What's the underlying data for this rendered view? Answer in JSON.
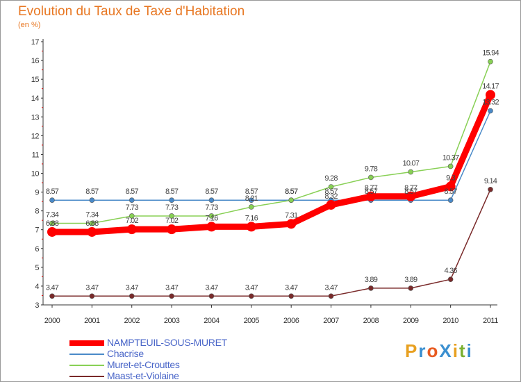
{
  "title": "Evolution du Taux de Taxe d'Habitation",
  "subtitle": "(en %)",
  "logo": {
    "text": "ProXiti",
    "colors": [
      "#e8a020",
      "#3a8fd0",
      "#e85a20",
      "#3a8fd0",
      "#e8a020",
      "#7ab030",
      "#3a8fd0"
    ]
  },
  "chart_data": {
    "type": "line",
    "x": [
      "2000",
      "2001",
      "2002",
      "2003",
      "2004",
      "2005",
      "2006",
      "2007",
      "2008",
      "2009",
      "2010",
      "2011"
    ],
    "ylim": [
      3,
      17
    ],
    "yticks": [
      3,
      4,
      5,
      6,
      7,
      8,
      9,
      10,
      11,
      12,
      13,
      14,
      15,
      16,
      17
    ],
    "grid": false,
    "legend": "bottom-left",
    "series": [
      {
        "name": "NAMPTEUIL-SOUS-MURET",
        "color": "#ff0000",
        "values": [
          6.88,
          6.88,
          7.02,
          7.02,
          7.16,
          7.16,
          7.31,
          8.32,
          8.77,
          8.77,
          9.3,
          14.17
        ],
        "labels": [
          "6.88",
          "6.88",
          "7.02",
          "7.02",
          "7.16",
          "7.16",
          "7.31",
          "8.32",
          "8.77",
          "8.77",
          "9.3",
          "14.17"
        ]
      },
      {
        "name": "Chacrise",
        "color": "#4a8ac8",
        "values": [
          8.57,
          8.57,
          8.57,
          8.57,
          8.57,
          8.57,
          8.57,
          8.57,
          8.57,
          8.57,
          8.57,
          13.32
        ],
        "labels": [
          "8.57",
          "8.57",
          "8.57",
          "8.57",
          "8.57",
          "8.57",
          "8.57",
          "8.57",
          "8.57",
          "8.57",
          "8.57",
          "13.32"
        ]
      },
      {
        "name": "Muret-et-Crouttes",
        "color": "#88d055",
        "values": [
          7.34,
          7.34,
          7.73,
          7.73,
          7.73,
          8.21,
          8.57,
          9.28,
          9.78,
          10.07,
          10.37,
          15.94
        ],
        "labels": [
          "7.34",
          "7.34",
          "7.73",
          "7.73",
          "7.73",
          "8.21",
          "8.57",
          "9.28",
          "9.78",
          "10.07",
          "10.37",
          "15.94"
        ]
      },
      {
        "name": "Maast-et-Violaine",
        "color": "#7a2a2a",
        "values": [
          3.47,
          3.47,
          3.47,
          3.47,
          3.47,
          3.47,
          3.47,
          3.47,
          3.89,
          3.89,
          4.36,
          9.14
        ],
        "labels": [
          "3.47",
          "3.47",
          "3.47",
          "3.47",
          "3.47",
          "3.47",
          "3.47",
          "3.47",
          "3.89",
          "3.89",
          "4.36",
          "9.14"
        ]
      }
    ]
  }
}
